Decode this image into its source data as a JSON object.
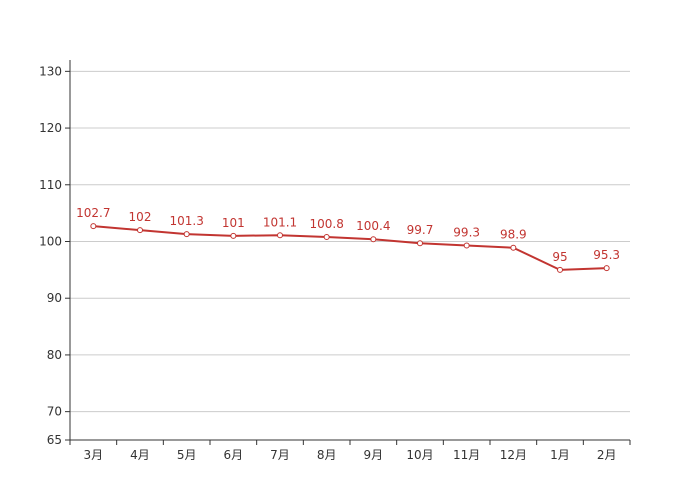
{
  "chart_data": {
    "type": "line",
    "categories": [
      "3月",
      "4月",
      "5月",
      "6月",
      "7月",
      "8月",
      "9月",
      "10月",
      "11月",
      "12月",
      "1月",
      "2月"
    ],
    "series": [
      {
        "values": [
          102.7,
          102,
          101.3,
          101,
          101.1,
          100.8,
          100.4,
          99.7,
          99.3,
          98.9,
          95,
          95.3
        ]
      }
    ],
    "data_labels": [
      "102.7",
      "102",
      "101.3",
      "101",
      "101.1",
      "100.8",
      "100.4",
      "99.7",
      "99.3",
      "98.9",
      "95",
      "95.3"
    ],
    "ylim": [
      65,
      132
    ],
    "y_ticks": [
      65,
      70,
      80,
      90,
      100,
      110,
      120,
      130
    ],
    "grid": true,
    "title": "",
    "xlabel": "",
    "ylabel": "",
    "colors": {
      "series": "#c23531",
      "grid": "#cccccc",
      "axis": "#333333",
      "text": "#333333"
    }
  }
}
